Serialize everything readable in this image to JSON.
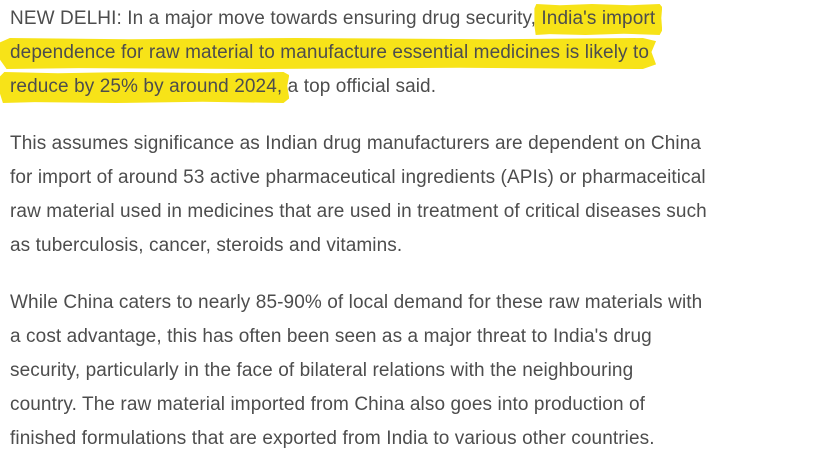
{
  "colors": {
    "highlight": "#f7e318",
    "text": "#4d4d4d",
    "background": "#ffffff"
  },
  "article": {
    "paragraphs": [
      {
        "lines": [
          {
            "segments": [
              {
                "text": "NEW DELHI: In a major move towards ensuring drug security, ",
                "highlight": false
              },
              {
                "text": "India's import",
                "highlight": true
              }
            ]
          },
          {
            "segments": [
              {
                "text": "dependence for raw material to manufacture essential medicines is likely to",
                "highlight": true
              }
            ]
          },
          {
            "segments": [
              {
                "text": "reduce by 25% by around 2024,",
                "highlight": true
              },
              {
                "text": " a top official said.",
                "highlight": false
              }
            ]
          }
        ]
      },
      {
        "lines": [
          {
            "segments": [
              {
                "text": "This assumes significance as Indian drug manufacturers are dependent on China",
                "highlight": false
              }
            ]
          },
          {
            "segments": [
              {
                "text": "for import of around 53 active pharmaceutical ingredients (APIs) or pharmaceitical",
                "highlight": false
              }
            ]
          },
          {
            "segments": [
              {
                "text": "raw material used in medicines that are used in treatment of critical diseases such",
                "highlight": false
              }
            ]
          },
          {
            "segments": [
              {
                "text": "as tuberculosis, cancer, steroids and vitamins.",
                "highlight": false
              }
            ]
          }
        ]
      },
      {
        "lines": [
          {
            "segments": [
              {
                "text": "While China caters to nearly 85-90% of local demand for these raw materials with",
                "highlight": false
              }
            ]
          },
          {
            "segments": [
              {
                "text": "a cost advantage, this has often been seen as a major threat to India's drug",
                "highlight": false
              }
            ]
          },
          {
            "segments": [
              {
                "text": "security, particularly in the face of bilateral relations with the neighbouring",
                "highlight": false
              }
            ]
          },
          {
            "segments": [
              {
                "text": "country. The raw material imported from China also goes into production of",
                "highlight": false
              }
            ]
          },
          {
            "segments": [
              {
                "text": "finished formulations that are exported from India to various other countries.",
                "highlight": false
              }
            ]
          }
        ]
      }
    ]
  }
}
